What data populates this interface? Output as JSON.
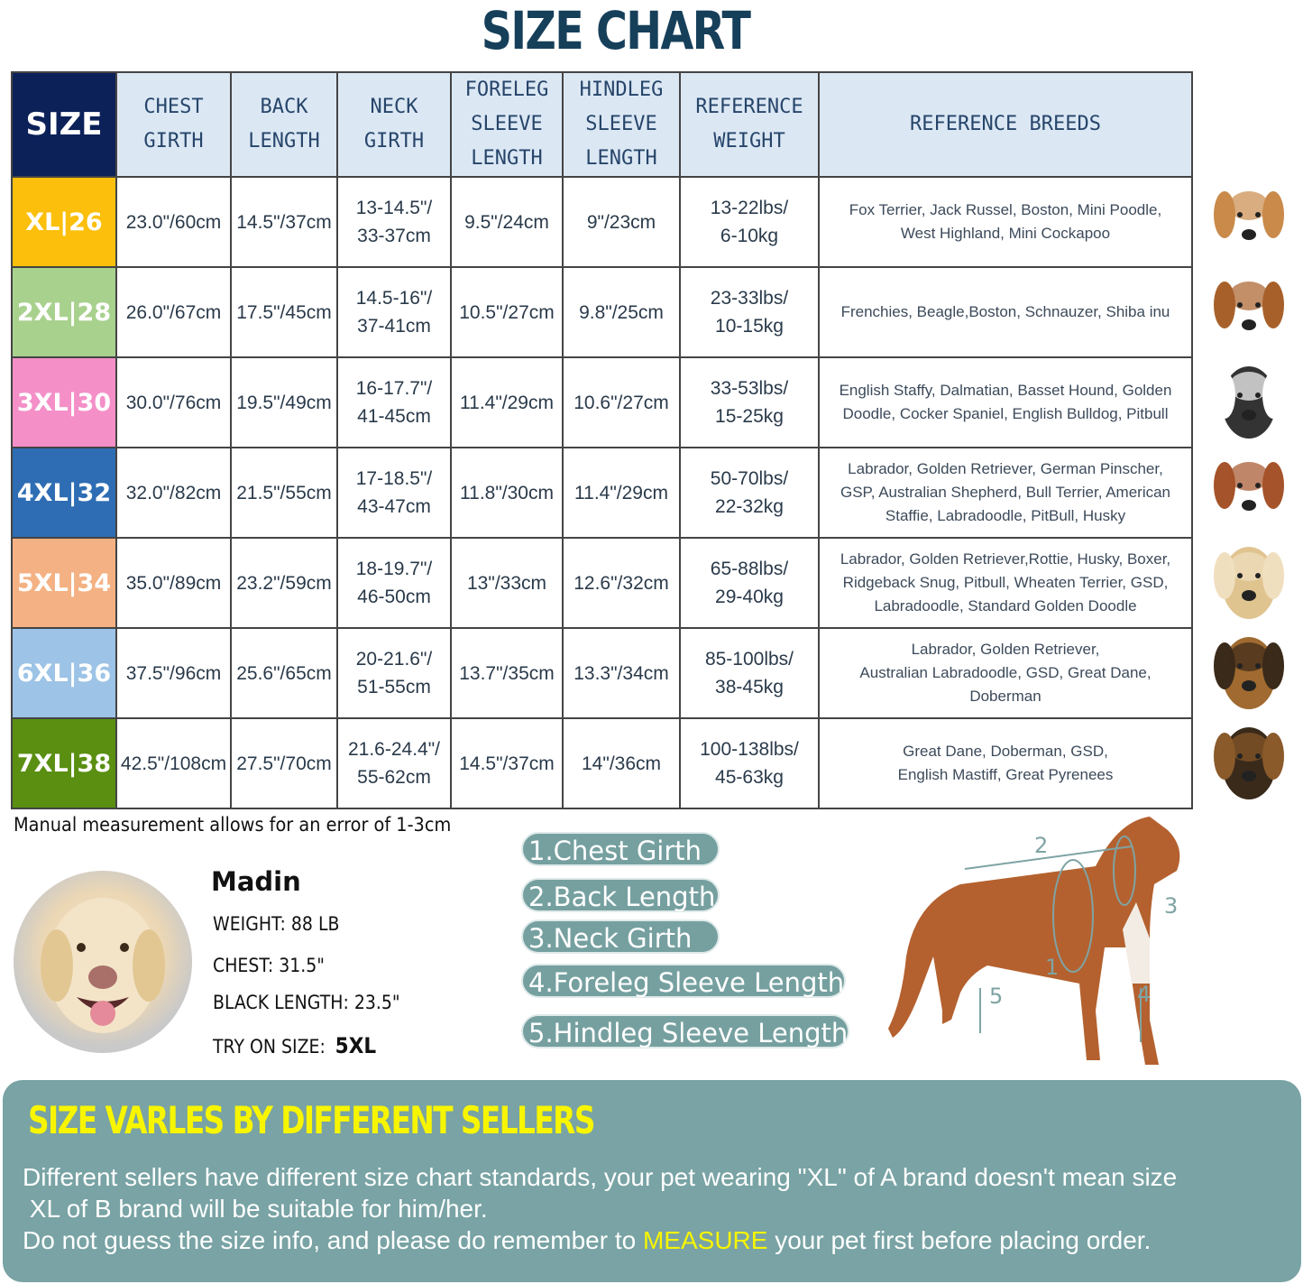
{
  "title": "SIZE CHART",
  "table": {
    "headers": [
      "SIZE",
      "CHEST GIRTH",
      "BACK LENGTH",
      "NECK GIRTH",
      "FORELEG SLEEVE LENGTH",
      "HINDLEG SLEEVE LENGTH",
      "REFERENCE WEIGHT",
      "REFERENCE BREEDS"
    ],
    "header_lines": [
      [
        "SIZE"
      ],
      [
        "CHEST",
        "GIRTH"
      ],
      [
        "BACK",
        "LENGTH"
      ],
      [
        "NECK",
        "GIRTH"
      ],
      [
        "FORELEG",
        "SLEEVE",
        "LENGTH"
      ],
      [
        "HINDLEG",
        "SLEEVE",
        "LENGTH"
      ],
      [
        "REFERENCE",
        "WEIGHT"
      ],
      [
        "REFERENCE  BREEDS"
      ]
    ],
    "rows": [
      {
        "size": "XL|26",
        "color": "#fbbf0c",
        "chest": "23.0\"/60cm",
        "back": "14.5\"/37cm",
        "neck": [
          "13-14.5\"/",
          "33-37cm"
        ],
        "foreleg": "9.5\"/24cm",
        "hindleg": "9\"/23cm",
        "weight": [
          "13-22lbs/",
          "6-10kg"
        ],
        "breeds": [
          "Fox Terrier, Jack Russel, Boston, Mini Poodle,",
          "West Highland, Mini Cockapoo"
        ],
        "dog": "jack-russell-icon"
      },
      {
        "size": "2XL|28",
        "color": "#a9d18e",
        "chest": "26.0\"/67cm",
        "back": "17.5\"/45cm",
        "neck": [
          "14.5-16\"/",
          "37-41cm"
        ],
        "foreleg": "10.5\"/27cm",
        "hindleg": "9.8\"/25cm",
        "weight": [
          "23-33lbs/",
          "10-15kg"
        ],
        "breeds": [
          "Frenchies, Beagle,Boston, Schnauzer, Shiba inu"
        ],
        "dog": "beagle-icon"
      },
      {
        "size": "3XL|30",
        "color": "#f48fc8",
        "chest": "30.0\"/76cm",
        "back": "19.5\"/49cm",
        "neck": [
          "16-17.7\"/",
          "41-45cm"
        ],
        "foreleg": "11.4\"/29cm",
        "hindleg": "10.6\"/27cm",
        "weight": [
          "33-53lbs/",
          "15-25kg"
        ],
        "breeds": [
          "English Staffy, Dalmatian, Basset Hound, Golden",
          "Doodle, Cocker Spaniel, English Bulldog, Pitbull"
        ],
        "dog": "dalmatian-icon"
      },
      {
        "size": "4XL|32",
        "color": "#2e6db3",
        "chest": "32.0\"/82cm",
        "back": "21.5\"/55cm",
        "neck": [
          "17-18.5\"/",
          "43-47cm"
        ],
        "foreleg": "11.8\"/30cm",
        "hindleg": "11.4\"/29cm",
        "weight": [
          "50-70lbs/",
          "22-32kg"
        ],
        "breeds": [
          "Labrador, Golden Retriever, German Pinscher,",
          "GSP, Australian Shepherd, Bull Terrier, American",
          "Staffie, Labradoodle, PitBull, Husky"
        ],
        "dog": "pitbull-icon"
      },
      {
        "size": "5XL|34",
        "color": "#f4b183",
        "chest": "35.0\"/89cm",
        "back": "23.2\"/59cm",
        "neck": [
          "18-19.7\"/",
          "46-50cm"
        ],
        "foreleg": "13\"/33cm",
        "hindleg": "12.6\"/32cm",
        "weight": [
          "65-88lbs/",
          "29-40kg"
        ],
        "breeds": [
          "Labrador, Golden Retriever,Rottie, Husky, Boxer,",
          "Ridgeback Snug, Pitbull, Wheaten Terrier, GSD,",
          "Labradoodle,  Standard Golden Doodle"
        ],
        "dog": "labrador-icon"
      },
      {
        "size": "6XL|36",
        "color": "#9dc3e6",
        "chest": "37.5\"/96cm",
        "back": "25.6\"/65cm",
        "neck": [
          "20-21.6\"/",
          "51-55cm"
        ],
        "foreleg": "13.7\"/35cm",
        "hindleg": "13.3\"/34cm",
        "weight": [
          "85-100lbs/",
          "38-45kg"
        ],
        "breeds": [
          "Labrador, Golden Retriever,",
          "Australian Labradoodle, GSD, Great Dane,",
          "Doberman"
        ],
        "dog": "german-shepherd-icon"
      },
      {
        "size": "7XL|38",
        "color": "#5a8f12",
        "chest": "42.5\"/108cm",
        "back": "27.5\"/70cm",
        "neck": [
          "21.6-24.4\"/",
          "55-62cm"
        ],
        "foreleg": "14.5\"/37cm",
        "hindleg": "14\"/36cm",
        "weight": [
          "100-138lbs/",
          "45-63kg"
        ],
        "breeds": [
          "Great Dane, Doberman, GSD,",
          "English Mastiff, Great Pyrenees"
        ],
        "dog": "great-dane-icon"
      }
    ]
  },
  "note": "Manual measurement allows for an error of 1-3cm",
  "example": {
    "name": "Madin",
    "weight": "WEIGHT: 88 LB",
    "chest": "CHEST: 31.5\"",
    "length": "BLACK LENGTH: 23.5\"",
    "try_label": "TRY ON SIZE:",
    "try_size": "5XL"
  },
  "measurements": [
    "1.Chest Girth",
    "2.Back Length",
    "3.Neck Girth",
    "4.Foreleg Sleeve Length",
    "5.Hindleg Sleeve Length"
  ],
  "diagram_labels": [
    "1",
    "2",
    "3",
    "4",
    "5"
  ],
  "panel": {
    "title": "SIZE VARLES BY DIFFERENT SELLERS",
    "line1": "Different sellers have different size chart standards, your pet wearing \"XL\" of A brand doesn't mean size",
    "line2": " XL of B brand will be suitable for him/her.",
    "line3a": "Do not guess the size info, and please do remember to ",
    "line3b": "MEASURE",
    "line3c": " your pet first before placing order."
  },
  "colors": {
    "title": "#163f5a",
    "header_bg": "#dbe8f4",
    "size_header": "#0c2158",
    "pill": "#76a0a0",
    "panel": "#79a3a4",
    "highlight": "#f7f500"
  }
}
